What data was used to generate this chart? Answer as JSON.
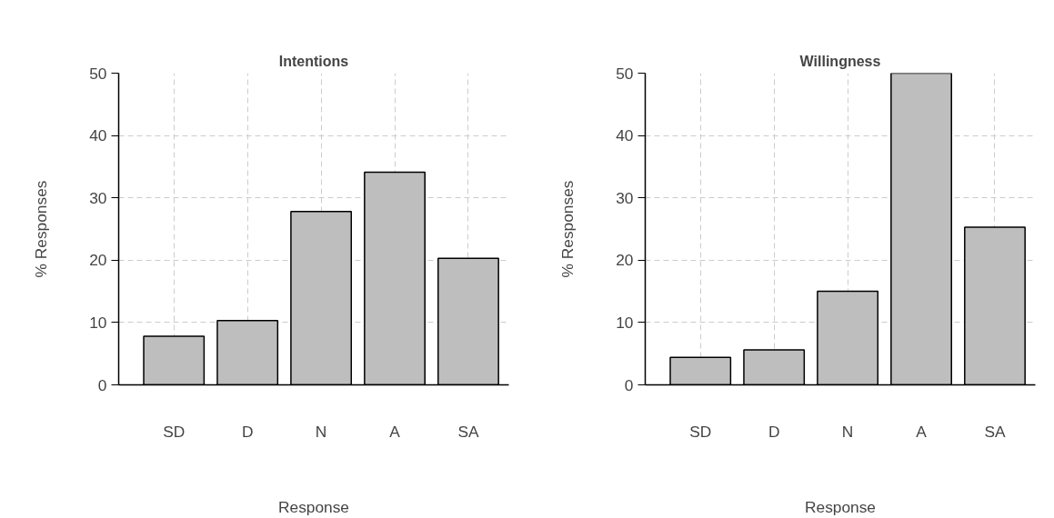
{
  "chart_data": [
    {
      "type": "bar",
      "title": "Intentions",
      "xlabel": "Response",
      "ylabel": "% Responses",
      "categories": [
        "SD",
        "D",
        "N",
        "A",
        "SA"
      ],
      "values": [
        7.8,
        10.3,
        27.8,
        34.1,
        20.3
      ],
      "color": "#bebebe",
      "ylim": [
        0,
        50
      ],
      "yticks": [
        0,
        10,
        20,
        30,
        40,
        50
      ],
      "grid": true
    },
    {
      "type": "bar",
      "title": "Willingness",
      "xlabel": "Response",
      "ylabel": "% Responses",
      "categories": [
        "SD",
        "D",
        "N",
        "A",
        "SA"
      ],
      "values": [
        4.4,
        5.6,
        15.0,
        50,
        25.3
      ],
      "color": "#bebebe",
      "ylim": [
        0,
        50
      ],
      "yticks": [
        0,
        10,
        20,
        30,
        40,
        50
      ],
      "grid": true
    }
  ]
}
